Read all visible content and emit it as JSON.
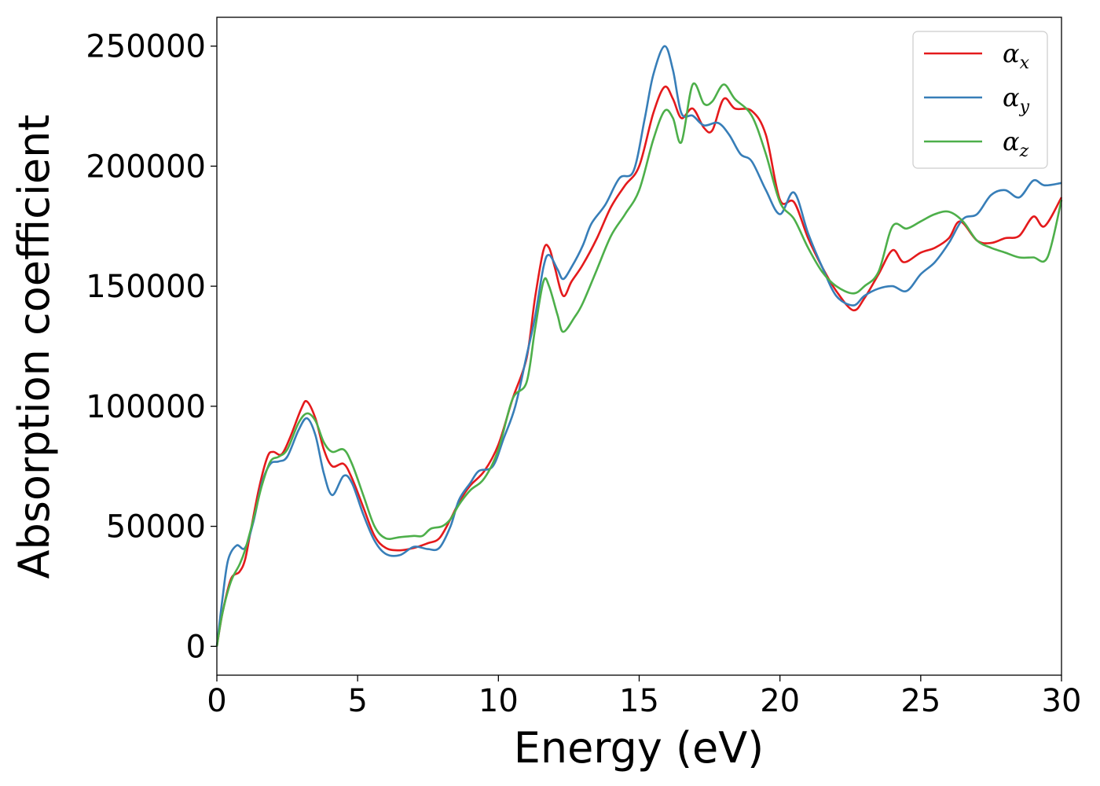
{
  "chart_data": {
    "type": "line",
    "title": "",
    "xlabel": "Energy (eV)",
    "ylabel": "Absorption coefficient",
    "xlim": [
      0,
      30
    ],
    "ylim": [
      -12000,
      262000
    ],
    "xticks": [
      0,
      5,
      10,
      15,
      20,
      25,
      30
    ],
    "yticks": [
      0,
      50000,
      100000,
      150000,
      200000,
      250000
    ],
    "legend_position": "top-right",
    "grid": false,
    "series": [
      {
        "name": "α",
        "subscript": "x",
        "color": "#e41a1c",
        "points": [
          [
            0,
            0
          ],
          [
            0.2,
            14000
          ],
          [
            0.5,
            28000
          ],
          [
            0.8,
            31000
          ],
          [
            1.0,
            36000
          ],
          [
            1.2,
            48000
          ],
          [
            1.5,
            66000
          ],
          [
            1.8,
            79000
          ],
          [
            2.0,
            81000
          ],
          [
            2.3,
            80000
          ],
          [
            2.6,
            87000
          ],
          [
            3.0,
            99000
          ],
          [
            3.2,
            102000
          ],
          [
            3.5,
            95000
          ],
          [
            3.8,
            82000
          ],
          [
            4.1,
            75000
          ],
          [
            4.5,
            76000
          ],
          [
            4.8,
            70000
          ],
          [
            5.2,
            58000
          ],
          [
            5.6,
            46000
          ],
          [
            6.0,
            41000
          ],
          [
            6.5,
            40000
          ],
          [
            7.0,
            41000
          ],
          [
            7.5,
            43000
          ],
          [
            7.9,
            45000
          ],
          [
            8.3,
            53000
          ],
          [
            8.6,
            60000
          ],
          [
            9.0,
            67000
          ],
          [
            9.5,
            73000
          ],
          [
            10.0,
            84000
          ],
          [
            10.5,
            103000
          ],
          [
            11.0,
            120000
          ],
          [
            11.3,
            145000
          ],
          [
            11.6,
            165000
          ],
          [
            11.8,
            166000
          ],
          [
            12.0,
            158000
          ],
          [
            12.3,
            146000
          ],
          [
            12.6,
            152000
          ],
          [
            13.0,
            159000
          ],
          [
            13.5,
            170000
          ],
          [
            14.0,
            183000
          ],
          [
            14.5,
            192000
          ],
          [
            15.0,
            200000
          ],
          [
            15.5,
            222000
          ],
          [
            15.9,
            233000
          ],
          [
            16.2,
            228000
          ],
          [
            16.5,
            220000
          ],
          [
            16.9,
            224000
          ],
          [
            17.3,
            216000
          ],
          [
            17.6,
            215000
          ],
          [
            18.0,
            228000
          ],
          [
            18.4,
            224000
          ],
          [
            19.0,
            223000
          ],
          [
            19.5,
            213000
          ],
          [
            20.0,
            186000
          ],
          [
            20.5,
            185000
          ],
          [
            21.0,
            170000
          ],
          [
            21.5,
            158000
          ],
          [
            22.0,
            148000
          ],
          [
            22.6,
            140000
          ],
          [
            23.0,
            145000
          ],
          [
            23.5,
            155000
          ],
          [
            24.0,
            165000
          ],
          [
            24.4,
            160000
          ],
          [
            25.0,
            164000
          ],
          [
            25.5,
            166000
          ],
          [
            26.0,
            170000
          ],
          [
            26.4,
            177000
          ],
          [
            27.0,
            169000
          ],
          [
            27.5,
            168000
          ],
          [
            28.0,
            170000
          ],
          [
            28.5,
            171000
          ],
          [
            29.0,
            179000
          ],
          [
            29.4,
            175000
          ],
          [
            30.0,
            187000
          ]
        ]
      },
      {
        "name": "α",
        "subscript": "y",
        "color": "#377eb8",
        "points": [
          [
            0,
            0
          ],
          [
            0.2,
            20000
          ],
          [
            0.4,
            36000
          ],
          [
            0.7,
            42000
          ],
          [
            1.0,
            41000
          ],
          [
            1.3,
            52000
          ],
          [
            1.6,
            68000
          ],
          [
            1.9,
            76000
          ],
          [
            2.2,
            77000
          ],
          [
            2.5,
            79000
          ],
          [
            2.9,
            90000
          ],
          [
            3.2,
            95000
          ],
          [
            3.5,
            88000
          ],
          [
            3.8,
            72000
          ],
          [
            4.1,
            63000
          ],
          [
            4.5,
            71000
          ],
          [
            4.8,
            68000
          ],
          [
            5.2,
            55000
          ],
          [
            5.6,
            44000
          ],
          [
            6.0,
            38500
          ],
          [
            6.5,
            38000
          ],
          [
            7.0,
            41500
          ],
          [
            7.5,
            40500
          ],
          [
            7.9,
            41000
          ],
          [
            8.3,
            50000
          ],
          [
            8.6,
            61000
          ],
          [
            9.0,
            68000
          ],
          [
            9.3,
            73000
          ],
          [
            9.8,
            75000
          ],
          [
            10.2,
            87000
          ],
          [
            10.6,
            100000
          ],
          [
            11.0,
            121000
          ],
          [
            11.3,
            137000
          ],
          [
            11.6,
            158000
          ],
          [
            11.8,
            163000
          ],
          [
            12.1,
            157000
          ],
          [
            12.3,
            153000
          ],
          [
            12.6,
            158000
          ],
          [
            13.0,
            167000
          ],
          [
            13.3,
            176000
          ],
          [
            13.8,
            184000
          ],
          [
            14.3,
            195000
          ],
          [
            14.8,
            198000
          ],
          [
            15.2,
            220000
          ],
          [
            15.5,
            238000
          ],
          [
            15.9,
            250000
          ],
          [
            16.2,
            240000
          ],
          [
            16.5,
            222000
          ],
          [
            16.9,
            221000
          ],
          [
            17.3,
            217000
          ],
          [
            17.8,
            218000
          ],
          [
            18.2,
            213000
          ],
          [
            18.6,
            205000
          ],
          [
            19.0,
            202000
          ],
          [
            19.5,
            190000
          ],
          [
            20.0,
            180000
          ],
          [
            20.5,
            189000
          ],
          [
            21.0,
            172000
          ],
          [
            21.5,
            158000
          ],
          [
            22.0,
            146000
          ],
          [
            22.6,
            142000
          ],
          [
            23.0,
            146000
          ],
          [
            23.5,
            149000
          ],
          [
            24.0,
            150000
          ],
          [
            24.5,
            148000
          ],
          [
            25.0,
            155000
          ],
          [
            25.5,
            160000
          ],
          [
            26.0,
            168000
          ],
          [
            26.5,
            178000
          ],
          [
            27.0,
            180000
          ],
          [
            27.5,
            188000
          ],
          [
            28.0,
            190000
          ],
          [
            28.5,
            187000
          ],
          [
            29.0,
            194000
          ],
          [
            29.4,
            192000
          ],
          [
            30.0,
            193000
          ]
        ]
      },
      {
        "name": "α",
        "subscript": "z",
        "color": "#4daf4a",
        "points": [
          [
            0,
            0
          ],
          [
            0.2,
            14000
          ],
          [
            0.5,
            27000
          ],
          [
            0.8,
            34000
          ],
          [
            1.0,
            40000
          ],
          [
            1.3,
            53000
          ],
          [
            1.6,
            67000
          ],
          [
            1.9,
            77000
          ],
          [
            2.2,
            79000
          ],
          [
            2.5,
            82000
          ],
          [
            2.9,
            93000
          ],
          [
            3.2,
            97000
          ],
          [
            3.5,
            94000
          ],
          [
            3.8,
            85000
          ],
          [
            4.1,
            81000
          ],
          [
            4.5,
            82000
          ],
          [
            4.8,
            76000
          ],
          [
            5.2,
            63000
          ],
          [
            5.6,
            50000
          ],
          [
            6.0,
            45000
          ],
          [
            6.5,
            45500
          ],
          [
            7.0,
            46000
          ],
          [
            7.3,
            46000
          ],
          [
            7.6,
            49000
          ],
          [
            8.0,
            50000
          ],
          [
            8.3,
            53000
          ],
          [
            8.6,
            59000
          ],
          [
            9.0,
            65000
          ],
          [
            9.5,
            70000
          ],
          [
            10.0,
            82000
          ],
          [
            10.5,
            103000
          ],
          [
            11.0,
            110000
          ],
          [
            11.3,
            132000
          ],
          [
            11.6,
            152000
          ],
          [
            11.8,
            150000
          ],
          [
            12.1,
            138000
          ],
          [
            12.3,
            131000
          ],
          [
            12.7,
            137000
          ],
          [
            13.0,
            143000
          ],
          [
            13.5,
            157000
          ],
          [
            14.0,
            171000
          ],
          [
            14.5,
            180000
          ],
          [
            15.0,
            190000
          ],
          [
            15.5,
            211000
          ],
          [
            15.9,
            223000
          ],
          [
            16.2,
            220000
          ],
          [
            16.5,
            210000
          ],
          [
            16.9,
            234000
          ],
          [
            17.3,
            226000
          ],
          [
            17.6,
            227000
          ],
          [
            18.0,
            234000
          ],
          [
            18.4,
            228000
          ],
          [
            19.0,
            221000
          ],
          [
            19.5,
            205000
          ],
          [
            20.0,
            185000
          ],
          [
            20.5,
            178000
          ],
          [
            21.0,
            166000
          ],
          [
            21.5,
            156000
          ],
          [
            22.0,
            150000
          ],
          [
            22.6,
            147000
          ],
          [
            23.0,
            150000
          ],
          [
            23.5,
            156000
          ],
          [
            24.0,
            175000
          ],
          [
            24.5,
            174000
          ],
          [
            25.0,
            177000
          ],
          [
            25.5,
            180000
          ],
          [
            26.0,
            181000
          ],
          [
            26.5,
            177000
          ],
          [
            27.0,
            169000
          ],
          [
            27.5,
            166000
          ],
          [
            28.0,
            164000
          ],
          [
            28.5,
            162000
          ],
          [
            29.0,
            162000
          ],
          [
            29.5,
            162000
          ],
          [
            30.0,
            186000
          ]
        ]
      }
    ]
  }
}
